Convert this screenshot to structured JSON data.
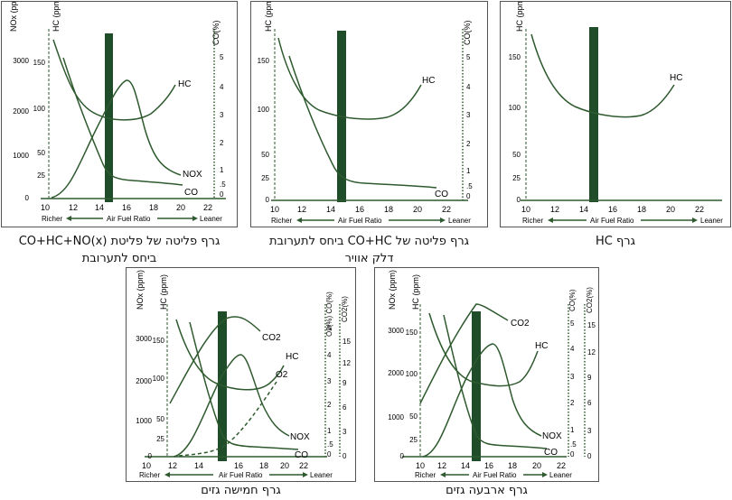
{
  "colors": {
    "curve": "#2f5a2f",
    "band": "#1f4d2a",
    "axis": "#2f5a2f",
    "text": "#111111"
  },
  "common": {
    "x_title": "Air Fuel Ratio",
    "richer": "Richer",
    "leaner": "Leaner",
    "x_ticks": [
      "10",
      "12",
      "14",
      "16",
      "18",
      "20",
      "22"
    ],
    "stoich_x": 14.7
  },
  "panels": [
    {
      "id": "combo",
      "caption_lines": [
        "גרף פליטה של פליטת CO+HC+NO(x)",
        "ביחס לתערובת"
      ],
      "axes": {
        "nox": {
          "label": "NOx (ppm)",
          "ticks": [
            "0",
            "1000",
            "2000",
            "3000"
          ]
        },
        "hc": {
          "label": "HC (ppm)",
          "ticks": [
            "25",
            "50",
            "100",
            "150"
          ]
        },
        "co": {
          "label": "CO(%)",
          "ticks": [
            "0",
            ".5",
            "1",
            "2",
            "3",
            "4",
            "5"
          ]
        }
      },
      "curve_labels": {
        "hc": "HC",
        "nox": "NOX",
        "co": "CO"
      }
    },
    {
      "id": "hcco",
      "caption_lines": [
        "גרף פליטה של CO+HC ביחס לתערובת",
        "דלק אוויר"
      ],
      "axes": {
        "hc": {
          "label": "HC (ppm)",
          "ticks": [
            "0",
            "25",
            "50",
            "100",
            "150"
          ]
        },
        "co": {
          "label": "CO(%)",
          "ticks": [
            "0",
            ".5",
            "1",
            "2",
            "3",
            "4",
            "5"
          ]
        }
      },
      "curve_labels": {
        "hc": "HC",
        "co": "CO"
      }
    },
    {
      "id": "hconly",
      "caption_lines": [
        "גרף HC"
      ],
      "axes": {
        "hc": {
          "label": "HC (ppm)",
          "ticks": [
            "0",
            "25",
            "50",
            "100",
            "150"
          ]
        }
      },
      "curve_labels": {
        "hc": "HC"
      }
    },
    {
      "id": "five",
      "caption_lines": [
        "גרף חמישה גזים"
      ],
      "axes": {
        "nox": {
          "label": "NOx (ppm)",
          "ticks": [
            "0",
            "1000",
            "2000",
            "3000"
          ]
        },
        "hc": {
          "label": "HC (ppm)",
          "ticks": [
            "25",
            "50",
            "100",
            "150"
          ]
        },
        "o2co": {
          "label": "O2(%) CO(%)",
          "ticks": [
            "0",
            ".5",
            "1",
            "2",
            "3",
            "4",
            "5"
          ]
        },
        "co2": {
          "label": "CO2(%)",
          "ticks": [
            "0",
            "3",
            "6",
            "9",
            "12",
            "15"
          ]
        }
      },
      "curve_labels": {
        "co2": "CO2",
        "hc": "HC",
        "o2": "O2",
        "nox": "NOX",
        "co": "CO"
      }
    },
    {
      "id": "four",
      "caption_lines": [
        "גרף ארבעה גזים"
      ],
      "axes": {
        "nox": {
          "label": "NOx (ppm)",
          "ticks": [
            "0",
            "1000",
            "2000",
            "3000"
          ]
        },
        "hc": {
          "label": "HC (ppm)",
          "ticks": [
            "25",
            "50",
            "100",
            "150"
          ]
        },
        "co": {
          "label": "CO(%)",
          "ticks": [
            "0",
            ".5",
            "1",
            "2",
            "3",
            "4",
            "5"
          ]
        },
        "co2": {
          "label": "CO2(%)",
          "ticks": [
            "0",
            "3",
            "6",
            "9",
            "12",
            "15"
          ]
        }
      },
      "curve_labels": {
        "co2": "CO2",
        "hc": "HC",
        "nox": "NOX",
        "co": "CO"
      }
    }
  ]
}
